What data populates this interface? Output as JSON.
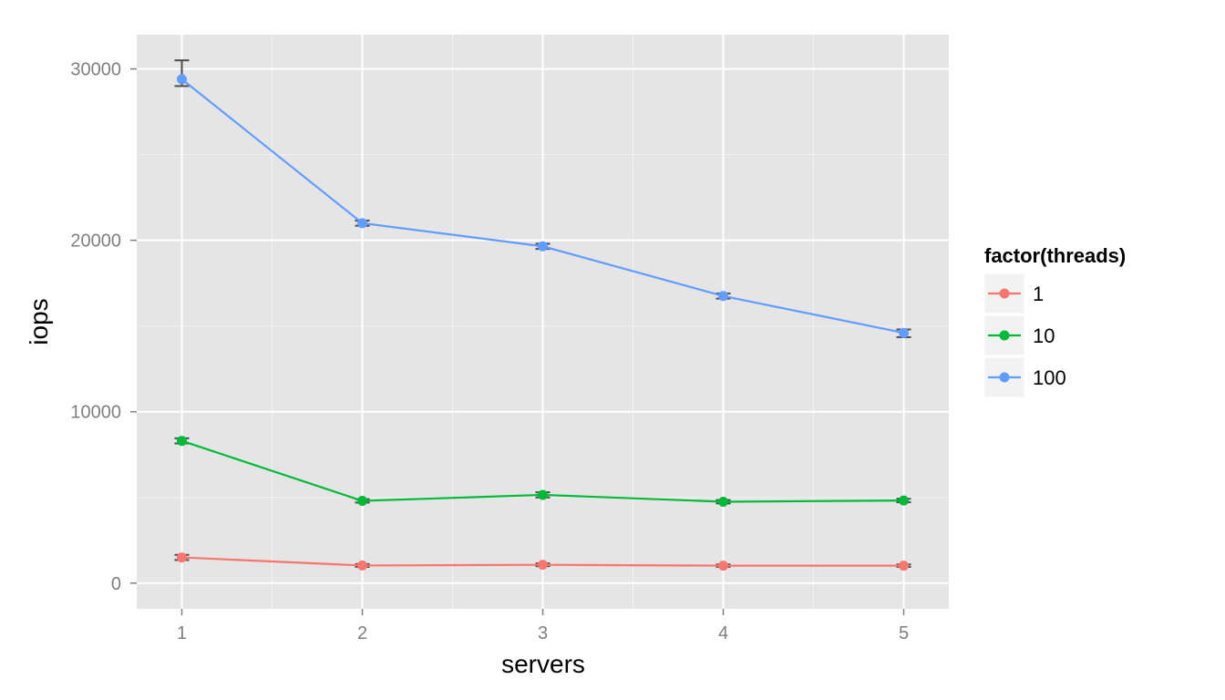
{
  "chart_data": {
    "type": "line",
    "xlabel": "servers",
    "ylabel": "iops",
    "x": [
      1,
      2,
      3,
      4,
      5
    ],
    "xlim": [
      0.75,
      5.25
    ],
    "ylim": [
      -1500,
      32000
    ],
    "x_ticks": [
      1,
      2,
      3,
      4,
      5
    ],
    "y_ticks": [
      0,
      10000,
      20000,
      30000
    ],
    "y_tick_labels": [
      "0",
      "10000",
      "20000",
      "30000"
    ],
    "x_tick_labels": [
      "1",
      "2",
      "3",
      "4",
      "5"
    ],
    "grid": true,
    "background": "#e5e5e5",
    "legend": {
      "title": "factor(threads)",
      "position": "right"
    },
    "series": [
      {
        "name": "1",
        "color": "#f8766d",
        "values": [
          1500,
          1030,
          1070,
          1020,
          1020
        ],
        "err_low": [
          1350,
          950,
          990,
          950,
          950
        ],
        "err_high": [
          1650,
          1110,
          1150,
          1090,
          1090
        ]
      },
      {
        "name": "10",
        "color": "#00ba38",
        "values": [
          8300,
          4800,
          5150,
          4750,
          4820
        ],
        "err_low": [
          8150,
          4700,
          5000,
          4650,
          4720
        ],
        "err_high": [
          8450,
          4900,
          5300,
          4850,
          4920
        ]
      },
      {
        "name": "100",
        "color": "#619cff",
        "values": [
          29400,
          21000,
          19650,
          16750,
          14600
        ],
        "err_low": [
          29000,
          20850,
          19500,
          16600,
          14350
        ],
        "err_high": [
          30500,
          21150,
          19800,
          16900,
          14800
        ]
      }
    ]
  }
}
